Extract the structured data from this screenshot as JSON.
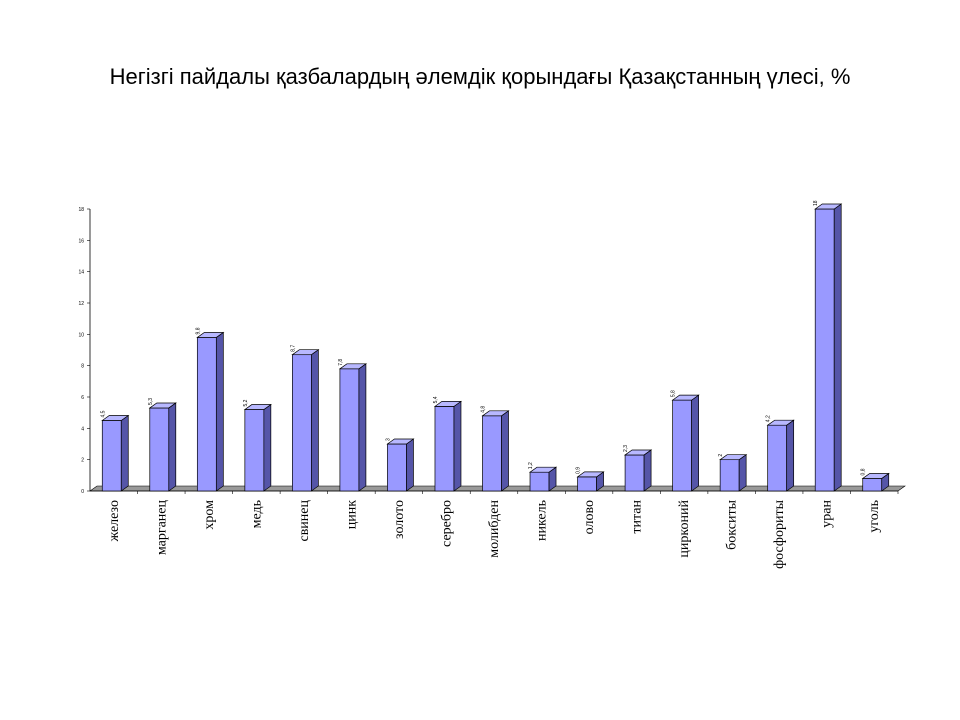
{
  "chart_data": {
    "type": "bar",
    "title": "Негізгі пайдалы қазбалардың әлемдік қорындағы Қазақстанның үлесі, %",
    "xlabel": "",
    "ylabel": "",
    "ylim": [
      0,
      18
    ],
    "yticks": [
      "0",
      "2",
      "4",
      "6",
      "8",
      "10",
      "12",
      "14",
      "16",
      "18"
    ],
    "categories": [
      "железо",
      "марганец",
      "хром",
      "медь",
      "свинец",
      "цинк",
      "золото",
      "серебро",
      "молибден",
      "никель",
      "олово",
      "титан",
      "цирконий",
      "бокситы",
      "фосфориты",
      "уран",
      "уголь"
    ],
    "values": [
      4.5,
      5.3,
      9.8,
      5.2,
      8.7,
      7.8,
      3,
      5.4,
      4.8,
      1.2,
      0.9,
      2.3,
      5.8,
      2,
      4.2,
      18,
      0.8
    ],
    "data_labels": [
      "4,5",
      "5,3",
      "9,8",
      "5,2",
      "8,7",
      "7,8",
      "3",
      "5,4",
      "4,8",
      "1,2",
      "0,9",
      "2,3",
      "5,8",
      "2",
      "4,2",
      "18",
      "0,8"
    ],
    "bar_color": "#9999ff",
    "bar_side_color": "#5555a8",
    "bar_top_color": "#b8b8ff",
    "floor_color": "#999999",
    "grid": false,
    "legend": "none"
  }
}
